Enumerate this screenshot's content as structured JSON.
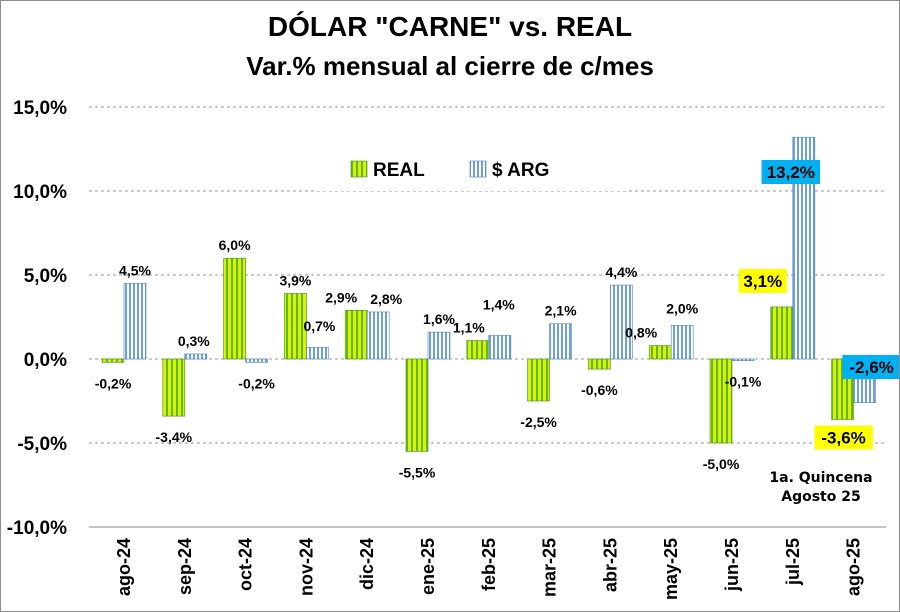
{
  "chart_data": {
    "type": "bar",
    "title": "DÓLAR \"CARNE\" vs. REAL",
    "subtitle": "Var.% mensual al cierre de c/mes",
    "categories": [
      "ago-24",
      "sep-24",
      "oct-24",
      "nov-24",
      "dic-24",
      "ene-25",
      "feb-25",
      "mar-25",
      "abr-25",
      "may-25",
      "jun-25",
      "jul-25",
      "ago-25"
    ],
    "series": [
      {
        "name": "REAL",
        "color": "#92d050",
        "values": [
          -0.2,
          -3.4,
          6.0,
          3.9,
          2.9,
          -5.5,
          1.1,
          -2.5,
          -0.6,
          0.8,
          -5.0,
          3.1,
          -3.6
        ],
        "labels": [
          "-0,2%",
          "-3,4%",
          "6,0%",
          "3,9%",
          "2,9%",
          "-5,5%",
          "1,1%",
          "-2,5%",
          "-0,6%",
          "0,8%",
          "-5,0%",
          "3,1%",
          "-3,6%"
        ]
      },
      {
        "name": "$ ARG",
        "color": "#6f9fd8",
        "values": [
          4.5,
          0.3,
          -0.2,
          0.7,
          2.8,
          1.6,
          1.4,
          2.1,
          4.4,
          2.0,
          -0.1,
          13.2,
          -2.6
        ],
        "labels": [
          "4,5%",
          "0,3%",
          "-0,2%",
          "0,7%",
          "2,8%",
          "1,6%",
          "1,4%",
          "2,1%",
          "4,4%",
          "2,0%",
          "-0,1%",
          "13,2%",
          "-2,6%"
        ]
      }
    ],
    "highlight_colors": {
      "REAL": "#ffff00",
      "$ ARG": "#00b0f0"
    },
    "yticks": [
      "15,0%",
      "10,0%",
      "5,0%",
      "0,0%",
      "-5,0%",
      "-10,0%"
    ],
    "ylim": [
      -10,
      15
    ],
    "grid": true,
    "legend": "top",
    "annotation": [
      "1a. Quincena",
      "Agosto 25"
    ]
  }
}
